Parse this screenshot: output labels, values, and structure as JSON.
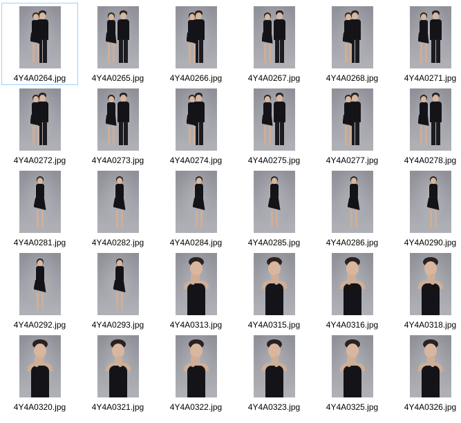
{
  "files": [
    {
      "name": "4Y4A0264.jpg",
      "scene": "couple",
      "selected": true
    },
    {
      "name": "4Y4A0265.jpg",
      "scene": "couple"
    },
    {
      "name": "4Y4A0266.jpg",
      "scene": "couple"
    },
    {
      "name": "4Y4A0267.jpg",
      "scene": "couple"
    },
    {
      "name": "4Y4A0268.jpg",
      "scene": "couple"
    },
    {
      "name": "4Y4A0271.jpg",
      "scene": "couple"
    },
    {
      "name": "4Y4A0272.jpg",
      "scene": "couple"
    },
    {
      "name": "4Y4A0273.jpg",
      "scene": "couple"
    },
    {
      "name": "4Y4A0274.jpg",
      "scene": "couple"
    },
    {
      "name": "4Y4A0275.jpg",
      "scene": "couple"
    },
    {
      "name": "4Y4A0277.jpg",
      "scene": "couple"
    },
    {
      "name": "4Y4A0278.jpg",
      "scene": "couple"
    },
    {
      "name": "4Y4A0281.jpg",
      "scene": "woman-full"
    },
    {
      "name": "4Y4A0282.jpg",
      "scene": "woman-full"
    },
    {
      "name": "4Y4A0284.jpg",
      "scene": "woman-full"
    },
    {
      "name": "4Y4A0285.jpg",
      "scene": "woman-full"
    },
    {
      "name": "4Y4A0286.jpg",
      "scene": "woman-full"
    },
    {
      "name": "4Y4A0290.jpg",
      "scene": "woman-full"
    },
    {
      "name": "4Y4A0292.jpg",
      "scene": "woman-full"
    },
    {
      "name": "4Y4A0293.jpg",
      "scene": "woman-full"
    },
    {
      "name": "4Y4A0313.jpg",
      "scene": "woman-portrait"
    },
    {
      "name": "4Y4A0315.jpg",
      "scene": "woman-portrait"
    },
    {
      "name": "4Y4A0316.jpg",
      "scene": "woman-portrait"
    },
    {
      "name": "4Y4A0318.jpg",
      "scene": "woman-portrait"
    },
    {
      "name": "4Y4A0320.jpg",
      "scene": "woman-portrait"
    },
    {
      "name": "4Y4A0321.jpg",
      "scene": "woman-portrait"
    },
    {
      "name": "4Y4A0322.jpg",
      "scene": "woman-portrait"
    },
    {
      "name": "4Y4A0323.jpg",
      "scene": "woman-portrait"
    },
    {
      "name": "4Y4A0325.jpg",
      "scene": "woman-portrait"
    },
    {
      "name": "4Y4A0326.jpg",
      "scene": "woman-portrait"
    }
  ],
  "colors": {
    "selection_border": "#99d1ff",
    "backdrop": "#9a9ba2",
    "dress": "#141418",
    "skin": "#d8b79e"
  }
}
